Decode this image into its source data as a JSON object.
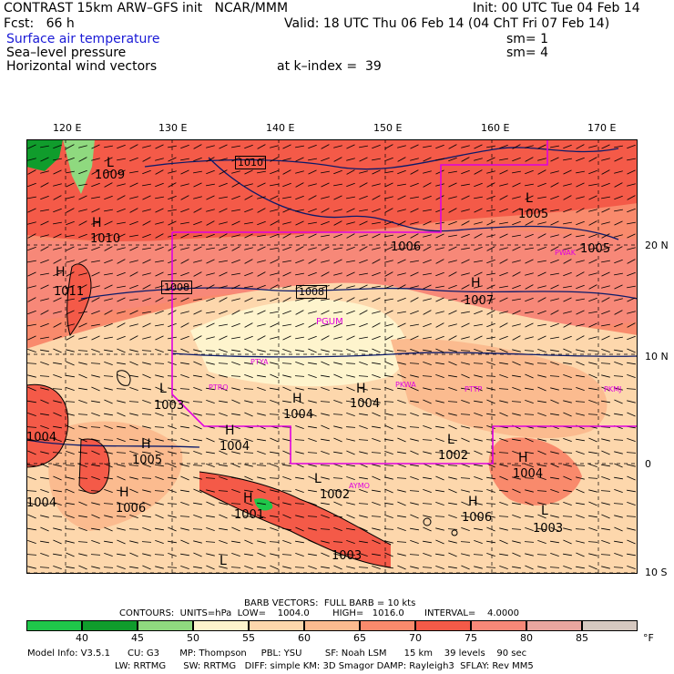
{
  "header": {
    "title": "CONTRAST 15km ARW–GFS init   NCAR/MMM",
    "init": "Init: 00 UTC Tue 04 Feb 14",
    "fcst": "Fcst:   66 h",
    "valid": "Valid: 18 UTC Thu 06 Feb 14 (04 ChT Fri 07 Feb 14)",
    "field1": "Surface air temperature",
    "field1_sm": "sm= 1",
    "field2": "Sea–level pressure",
    "field2_sm": "sm= 4",
    "field3": "Horizontal wind vectors",
    "kindex": "at k–index =  39"
  },
  "map": {
    "lon_labels": [
      "120 E",
      "130 E",
      "140 E",
      "150 E",
      "160 E",
      "170 E"
    ],
    "lat_labels": [
      "20 N",
      "10 N",
      "0",
      "10 S"
    ],
    "pressure_labels": [
      {
        "text": "1009"
      },
      {
        "text": "1010"
      },
      {
        "text": "1011"
      },
      {
        "text": "1010"
      },
      {
        "text": "1008"
      },
      {
        "text": "1008"
      },
      {
        "text": "1006"
      },
      {
        "text": "1005"
      },
      {
        "text": "1005"
      },
      {
        "text": "1007"
      },
      {
        "text": "1003"
      },
      {
        "text": "1004"
      },
      {
        "text": "1004"
      },
      {
        "text": "1004"
      },
      {
        "text": "1002"
      },
      {
        "text": "1004"
      },
      {
        "text": "1004"
      },
      {
        "text": "1005"
      },
      {
        "text": "1006"
      },
      {
        "text": "1004"
      },
      {
        "text": "1002"
      },
      {
        "text": "1001"
      },
      {
        "text": "1006"
      },
      {
        "text": "1003"
      },
      {
        "text": "1003"
      }
    ],
    "hl_markers": [
      "L",
      "H",
      "H",
      "H",
      "L",
      "H",
      "H",
      "H",
      "H",
      "L",
      "H",
      "L",
      "H",
      "L",
      "H",
      "L",
      "H",
      "L"
    ],
    "stations": [
      "PWAK",
      "PGUM",
      "PTYA",
      "PTRO",
      "PKWA",
      "PTTP",
      "PKMJ",
      "AYMO"
    ]
  },
  "footer": {
    "barb": "BARB VECTORS:  FULL BARB = 10 kts",
    "contours": "CONTOURS:  UNITS=hPa  LOW=    1004.0        HIGH=   1016.0       INTERVAL=    4.0000",
    "colorbar_labels": [
      "40",
      "45",
      "50",
      "55",
      "60",
      "65",
      "70",
      "75",
      "80",
      "85"
    ],
    "colorbar_unit": "°F",
    "colorbar_colors": [
      "#1fc74a",
      "#109c2c",
      "#8fd97f",
      "#fef4cd",
      "#fdd7ac",
      "#fbbb8f",
      "#f98a6c",
      "#f45a48",
      "#f78878",
      "#e9a69f",
      "#d6c8c0"
    ],
    "info1": "Model Info: V3.5.1      CU: G3       MP: Thompson     PBL: YSU        SF: Noah LSM      15 km    39 levels    90 sec",
    "info2": "LW: RRTMG      SW: RRTMG   DIFF: simple KM: 3D Smagor DAMP: Rayleigh3  SFLAY: Rev MM5"
  }
}
